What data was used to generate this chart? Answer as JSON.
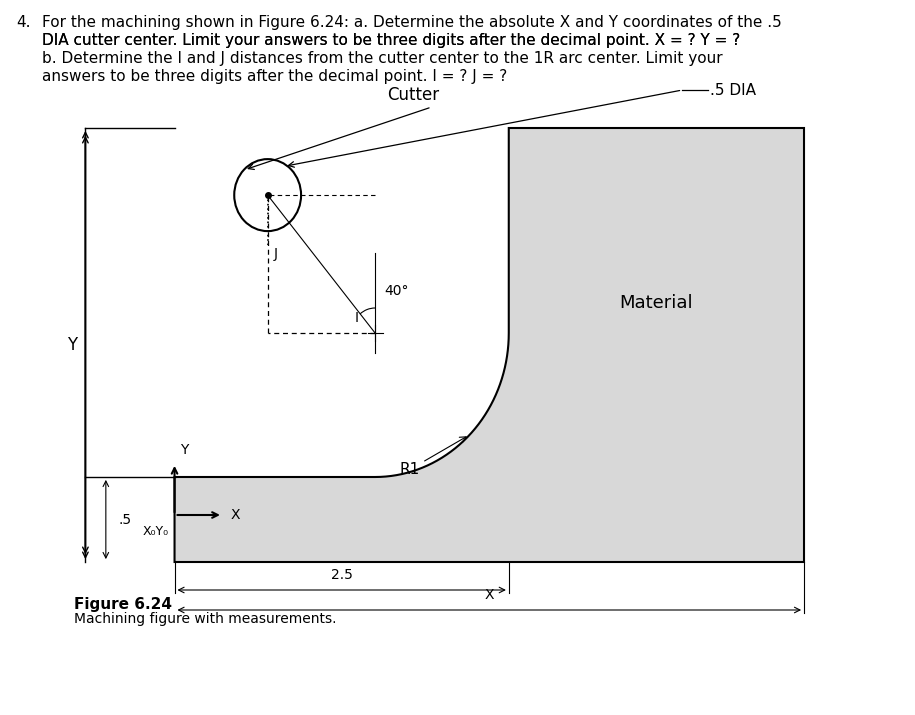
{
  "title_text": "4.  For the machining shown in Figure 6.24: a. Determine the absolute X and Y coordinates of the .5\n   DIA cutter center. Limit your answers to be three digits after the decimal point. X = ? Y = ?\n   b. Determine the I and J distances from the cutter center to the 1R arc center. Limit your\n   answers to be three digits after the decimal point. I = ? J = ?",
  "figure_caption": "Figure 6.24",
  "figure_subcaption": "Machining figure with measurements.",
  "bg_color": "#ffffff",
  "material_fill": "#d8d8d8",
  "label_cutter": "Cutter",
  "label_dia": ".5 DIA",
  "label_material": "Material",
  "label_40deg": "40°",
  "label_R1": "R1",
  "label_J": "J",
  "label_I": "I",
  "label_25": "2.5",
  "label_X": "X",
  "label_Y": "Y",
  "label_05": ".5",
  "label_X0Y0": "X₀Y₀"
}
